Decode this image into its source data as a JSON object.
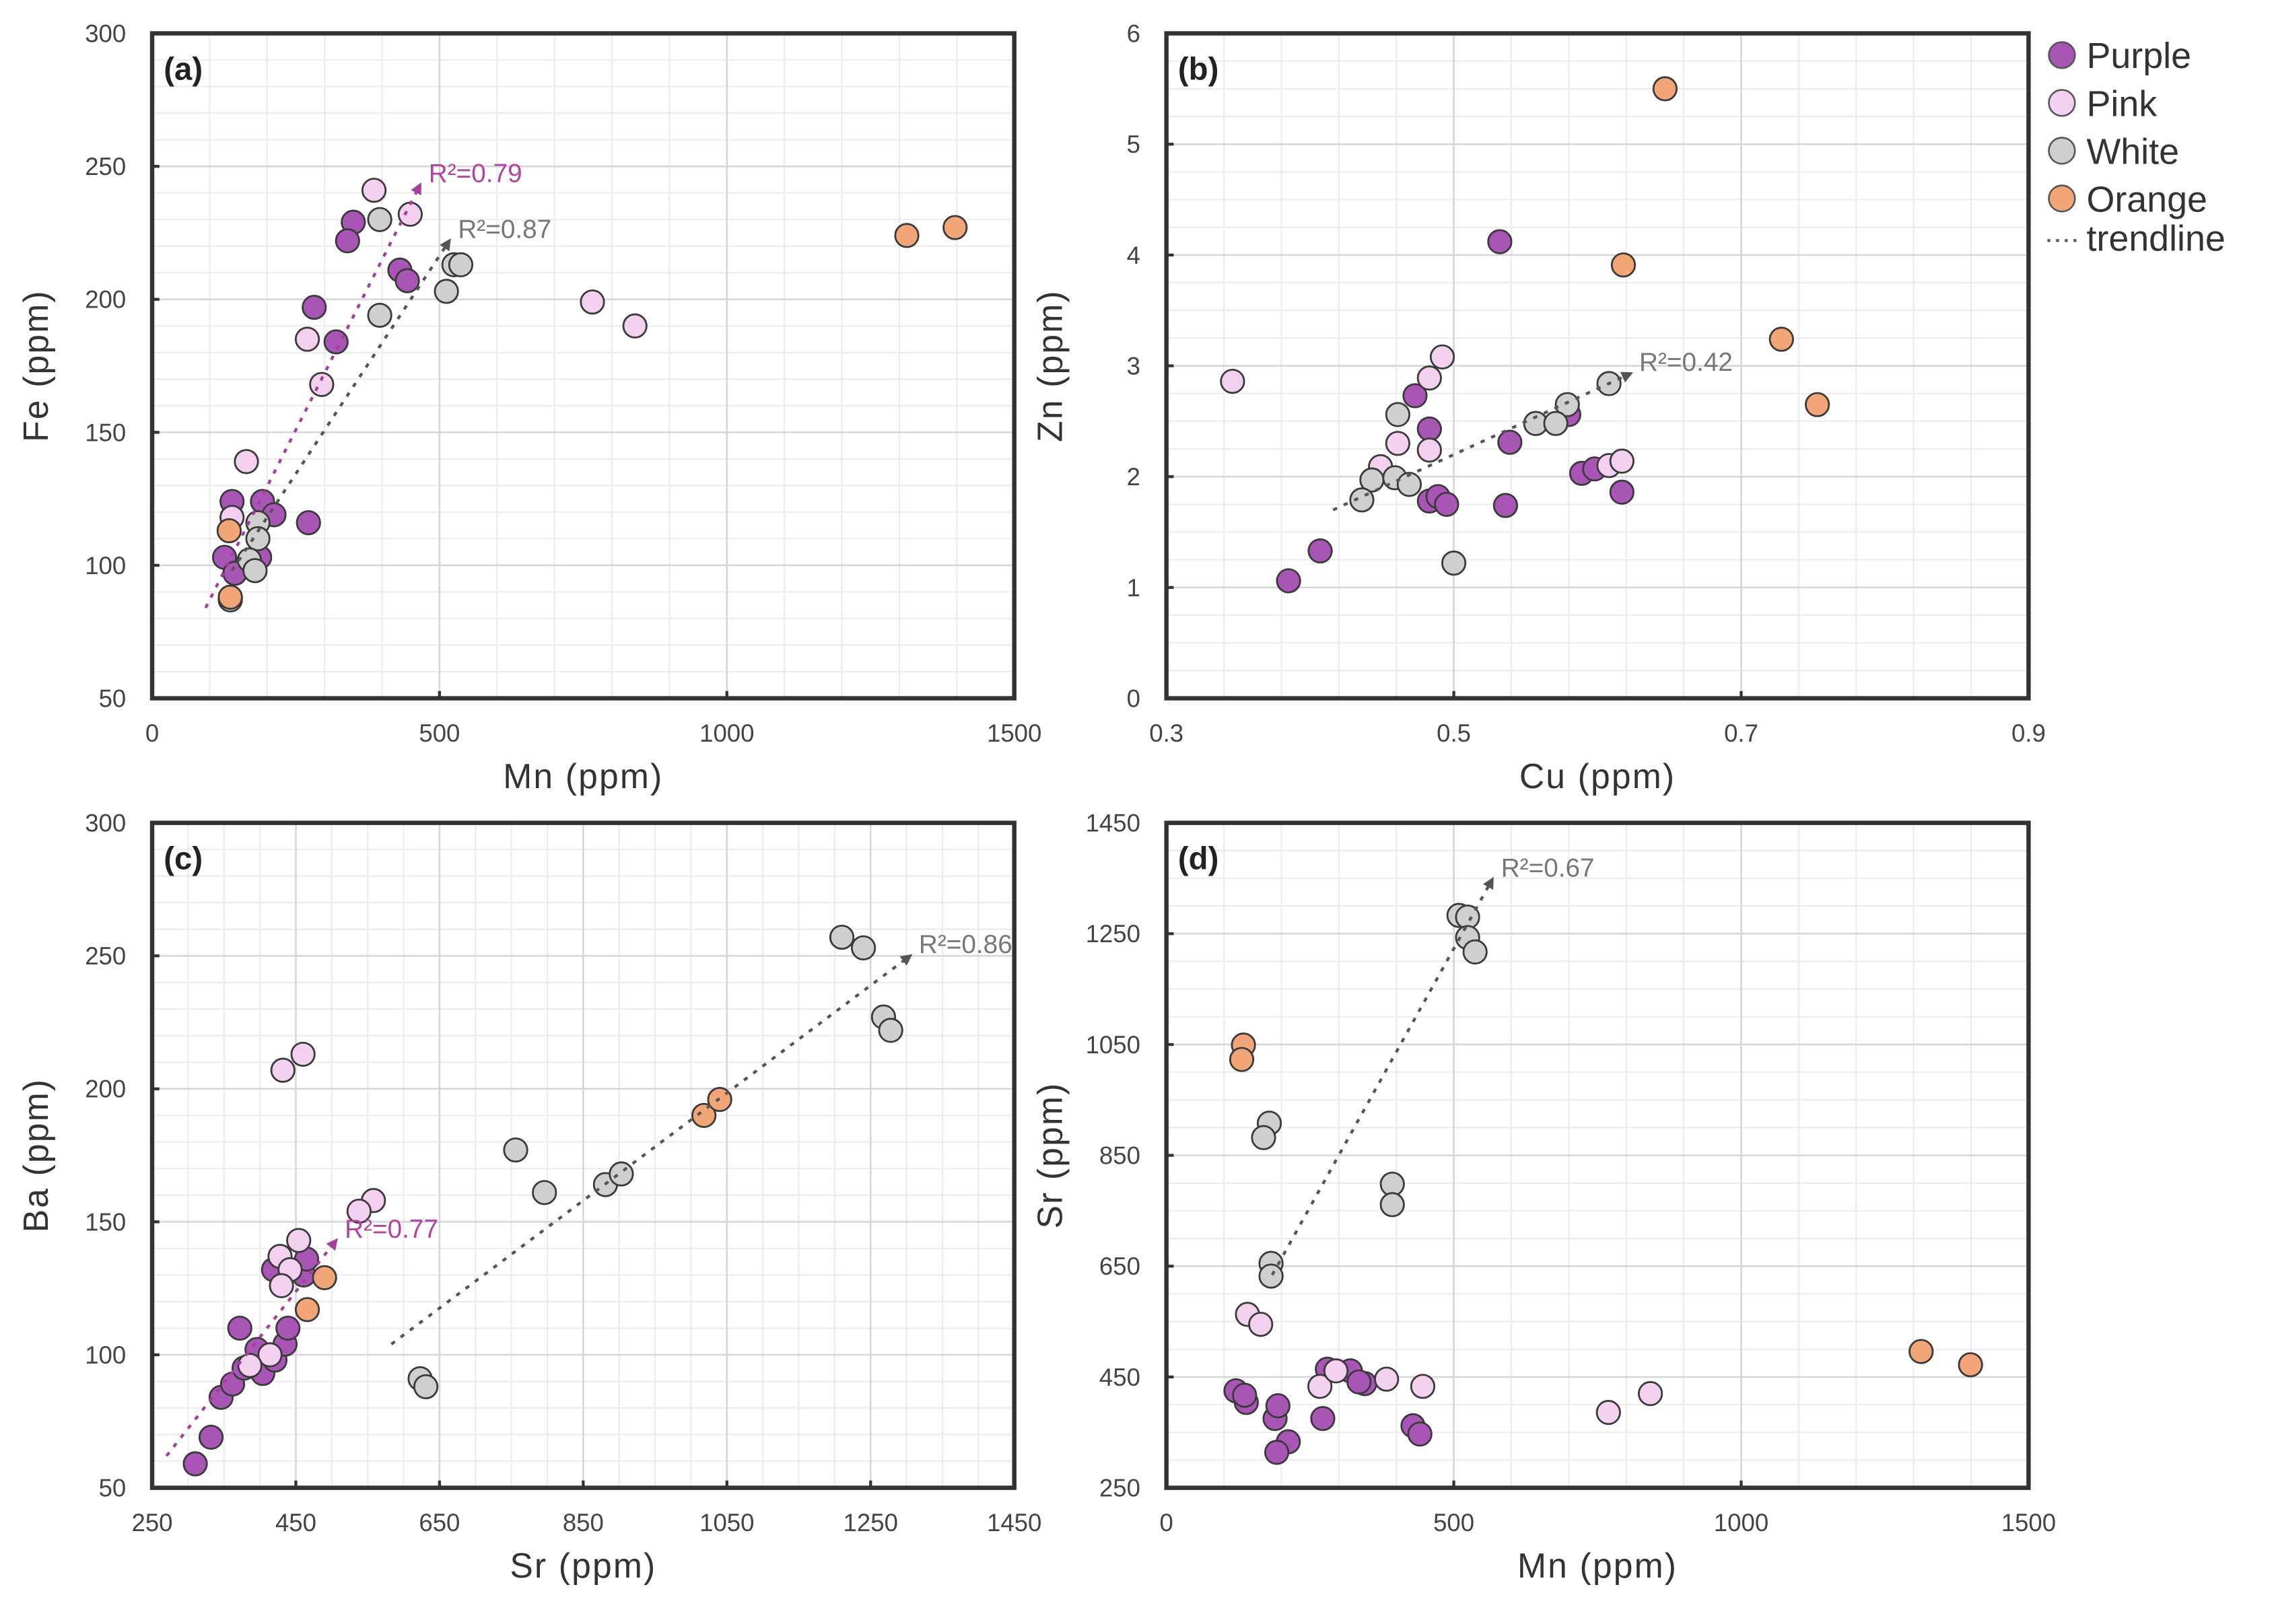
{
  "chart_data": [
    {
      "type": "scatter",
      "panel_label": "(a)",
      "xlabel": "Mn (ppm)",
      "ylabel": "Fe (ppm)",
      "xlim": [
        0,
        1500
      ],
      "ylim": [
        50,
        300
      ],
      "xticks": [
        0,
        500,
        1000,
        1500
      ],
      "yticks": [
        50,
        100,
        150,
        200,
        250,
        300
      ],
      "grid": true,
      "series": [
        {
          "name": "Purple",
          "points": [
            [
              350,
              229
            ],
            [
              340,
              222
            ],
            [
              431,
              211
            ],
            [
              444,
              207
            ],
            [
              282,
              197
            ],
            [
              320,
              184
            ],
            [
              139,
              124
            ],
            [
              192,
              124
            ],
            [
              212,
              119
            ],
            [
              272,
              116
            ],
            [
              126,
              103
            ],
            [
              187,
              103
            ],
            [
              144,
              97
            ],
            [
              136,
              88
            ]
          ]
        },
        {
          "name": "Pink",
          "points": [
            [
              386,
              241
            ],
            [
              449,
              232
            ],
            [
              270,
              185
            ],
            [
              295,
              168
            ],
            [
              164,
              139
            ],
            [
              139,
              118
            ],
            [
              766,
              199
            ],
            [
              840,
              190
            ]
          ]
        },
        {
          "name": "White",
          "points": [
            [
              396,
              230
            ],
            [
              396,
              194
            ],
            [
              512,
              203
            ],
            [
              525,
              213
            ],
            [
              537,
              213
            ],
            [
              184,
              116
            ],
            [
              184,
              110
            ],
            [
              169,
              102
            ],
            [
              179,
              98
            ],
            [
              136,
              87
            ]
          ]
        },
        {
          "name": "Orange",
          "points": [
            [
              1313,
              224
            ],
            [
              1397,
              227
            ],
            [
              134,
              113
            ],
            [
              136,
              88
            ]
          ]
        }
      ],
      "trendlines": [
        {
          "series": "Purple",
          "from": [
            93,
            84
          ],
          "to": [
            466,
            243
          ],
          "label": "R²=0.79"
        },
        {
          "series": "White",
          "from": [
            139,
            98
          ],
          "to": [
            517,
            222
          ],
          "label": "R²=0.87"
        }
      ]
    },
    {
      "type": "scatter",
      "panel_label": "(b)",
      "xlabel": "Cu (ppm)",
      "ylabel": "Zn (ppm)",
      "xlim": [
        0.3,
        0.9
      ],
      "ylim": [
        0,
        6
      ],
      "xticks": [
        "0.3",
        "0.5",
        "0.7",
        "0.9"
      ],
      "yticks": [
        0,
        1,
        2,
        3,
        4,
        5,
        6
      ],
      "grid": true,
      "series": [
        {
          "name": "Purple",
          "points": [
            [
              0.532,
              4.12
            ],
            [
              0.473,
              2.73
            ],
            [
              0.483,
              2.43
            ],
            [
              0.539,
              2.31
            ],
            [
              0.58,
              2.56
            ],
            [
              0.589,
              2.03
            ],
            [
              0.598,
              2.07
            ],
            [
              0.617,
              1.86
            ],
            [
              0.536,
              1.74
            ],
            [
              0.483,
              1.78
            ],
            [
              0.489,
              1.82
            ],
            [
              0.495,
              1.75
            ],
            [
              0.407,
              1.33
            ],
            [
              0.385,
              1.06
            ]
          ]
        },
        {
          "name": "Pink",
          "points": [
            [
              0.346,
              2.86
            ],
            [
              0.492,
              3.08
            ],
            [
              0.483,
              2.89
            ],
            [
              0.461,
              2.3
            ],
            [
              0.483,
              2.24
            ],
            [
              0.449,
              2.09
            ],
            [
              0.608,
              2.1
            ],
            [
              0.617,
              2.14
            ]
          ]
        },
        {
          "name": "White",
          "points": [
            [
              0.461,
              2.56
            ],
            [
              0.579,
              2.65
            ],
            [
              0.557,
              2.48
            ],
            [
              0.571,
              2.48
            ],
            [
              0.608,
              2.84
            ],
            [
              0.443,
              1.97
            ],
            [
              0.459,
              1.99
            ],
            [
              0.469,
              1.93
            ],
            [
              0.436,
              1.79
            ],
            [
              0.5,
              1.22
            ]
          ]
        },
        {
          "name": "Orange",
          "points": [
            [
              0.647,
              5.5
            ],
            [
              0.618,
              3.91
            ],
            [
              0.728,
              3.24
            ],
            [
              0.753,
              2.65
            ]
          ]
        }
      ],
      "trendlines": [
        {
          "series": "White",
          "from": [
            0.416,
            1.7
          ],
          "to": [
            0.623,
            2.93
          ],
          "label": "R²=0.42"
        }
      ]
    },
    {
      "type": "scatter",
      "panel_label": "(c)",
      "xlabel": "Sr (ppm)",
      "ylabel": "Ba (ppm)",
      "xlim": [
        250,
        1450
      ],
      "ylim": [
        50,
        300
      ],
      "xticks": [
        250,
        450,
        650,
        850,
        1050,
        1250,
        1450
      ],
      "yticks": [
        50,
        100,
        150,
        200,
        250,
        300
      ],
      "grid": true,
      "series": [
        {
          "name": "Purple",
          "points": [
            [
              310,
              59
            ],
            [
              332,
              69
            ],
            [
              346,
              84
            ],
            [
              362,
              89
            ],
            [
              372,
              110
            ],
            [
              378,
              95
            ],
            [
              396,
              102
            ],
            [
              404,
              93
            ],
            [
              421,
              98
            ],
            [
              435,
              104
            ],
            [
              439,
              110
            ],
            [
              461,
              130
            ],
            [
              465,
              136
            ],
            [
              419,
              132
            ]
          ]
        },
        {
          "name": "Pink",
          "points": [
            [
              432,
              207
            ],
            [
              460,
              213
            ],
            [
              558,
              158
            ],
            [
              538,
              154
            ],
            [
              454,
              143
            ],
            [
              428,
              137
            ],
            [
              442,
              132
            ],
            [
              430,
              126
            ],
            [
              414,
              100
            ],
            [
              386,
              96
            ]
          ]
        },
        {
          "name": "White",
          "points": [
            [
              1210,
              257
            ],
            [
              1240,
              253
            ],
            [
              1268,
              227
            ],
            [
              1278,
              222
            ],
            [
              756,
              177
            ],
            [
              796,
              161
            ],
            [
              881,
              164
            ],
            [
              903,
              168
            ],
            [
              623,
              91
            ],
            [
              631,
              88
            ]
          ]
        },
        {
          "name": "Orange",
          "points": [
            [
              1018,
              190
            ],
            [
              1040,
              196
            ],
            [
              490,
              129
            ],
            [
              466,
              117
            ]
          ]
        }
      ],
      "trendlines": [
        {
          "series": "Purple",
          "from": [
            270,
            62
          ],
          "to": [
            506,
            143
          ],
          "label": "R²=0.77"
        },
        {
          "series": "White",
          "from": [
            583,
            104
          ],
          "to": [
            1305,
            250
          ],
          "label": "R²=0.86"
        }
      ]
    },
    {
      "type": "scatter",
      "panel_label": "(d)",
      "xlabel": "Mn (ppm)",
      "ylabel": "Sr (ppm)",
      "xlim": [
        0,
        1500
      ],
      "ylim": [
        250,
        1450
      ],
      "xticks": [
        0,
        500,
        1000,
        1500
      ],
      "yticks": [
        250,
        450,
        650,
        850,
        1050,
        1250,
        1450
      ],
      "grid": true,
      "series": [
        {
          "name": "Purple",
          "points": [
            [
              121,
              425
            ],
            [
              139,
              404
            ],
            [
              189,
              375
            ],
            [
              212,
              333
            ],
            [
              192,
              314
            ],
            [
              194,
              398
            ],
            [
              272,
              375
            ],
            [
              280,
              464
            ],
            [
              320,
              461
            ],
            [
              345,
              438
            ],
            [
              335,
              441
            ],
            [
              429,
              362
            ],
            [
              441,
              347
            ],
            [
              136,
              417
            ]
          ]
        },
        {
          "name": "Pink",
          "points": [
            [
              141,
              563
            ],
            [
              164,
              545
            ],
            [
              267,
              433
            ],
            [
              295,
              461
            ],
            [
              383,
              446
            ],
            [
              446,
              433
            ],
            [
              769,
              386
            ],
            [
              842,
              420
            ]
          ]
        },
        {
          "name": "White",
          "points": [
            [
              509,
              1283
            ],
            [
              524,
              1280
            ],
            [
              524,
              1243
            ],
            [
              537,
              1217
            ],
            [
              179,
              908
            ],
            [
              169,
              882
            ],
            [
              393,
              798
            ],
            [
              393,
              761
            ],
            [
              182,
              655
            ],
            [
              182,
              632
            ]
          ]
        },
        {
          "name": "Orange",
          "points": [
            [
              134,
              1049
            ],
            [
              131,
              1023
            ],
            [
              1313,
              496
            ],
            [
              1399,
              472
            ]
          ]
        }
      ],
      "trendlines": [
        {
          "series": "White",
          "from": [
            184,
            634
          ],
          "to": [
            567,
            1348
          ],
          "label": "R²=0.67"
        }
      ]
    }
  ],
  "legend": {
    "placement": "top-right",
    "items": [
      {
        "name": "Purple",
        "color": "#a855b5"
      },
      {
        "name": "Pink",
        "color": "#f3d0f0"
      },
      {
        "name": "White",
        "color": "#cfcfcf"
      },
      {
        "name": "Orange",
        "color": "#f2a677"
      }
    ],
    "trendline_label": "trendline"
  },
  "colors": {
    "Purple": "#a855b5",
    "Pink": "#f3d0f0",
    "White": "#cfcfcf",
    "Orange": "#f2a677",
    "trend_Purple": "#a3409b",
    "trend_White": "#555555",
    "label_Purple": "#b0449f",
    "label_White": "#777777"
  }
}
